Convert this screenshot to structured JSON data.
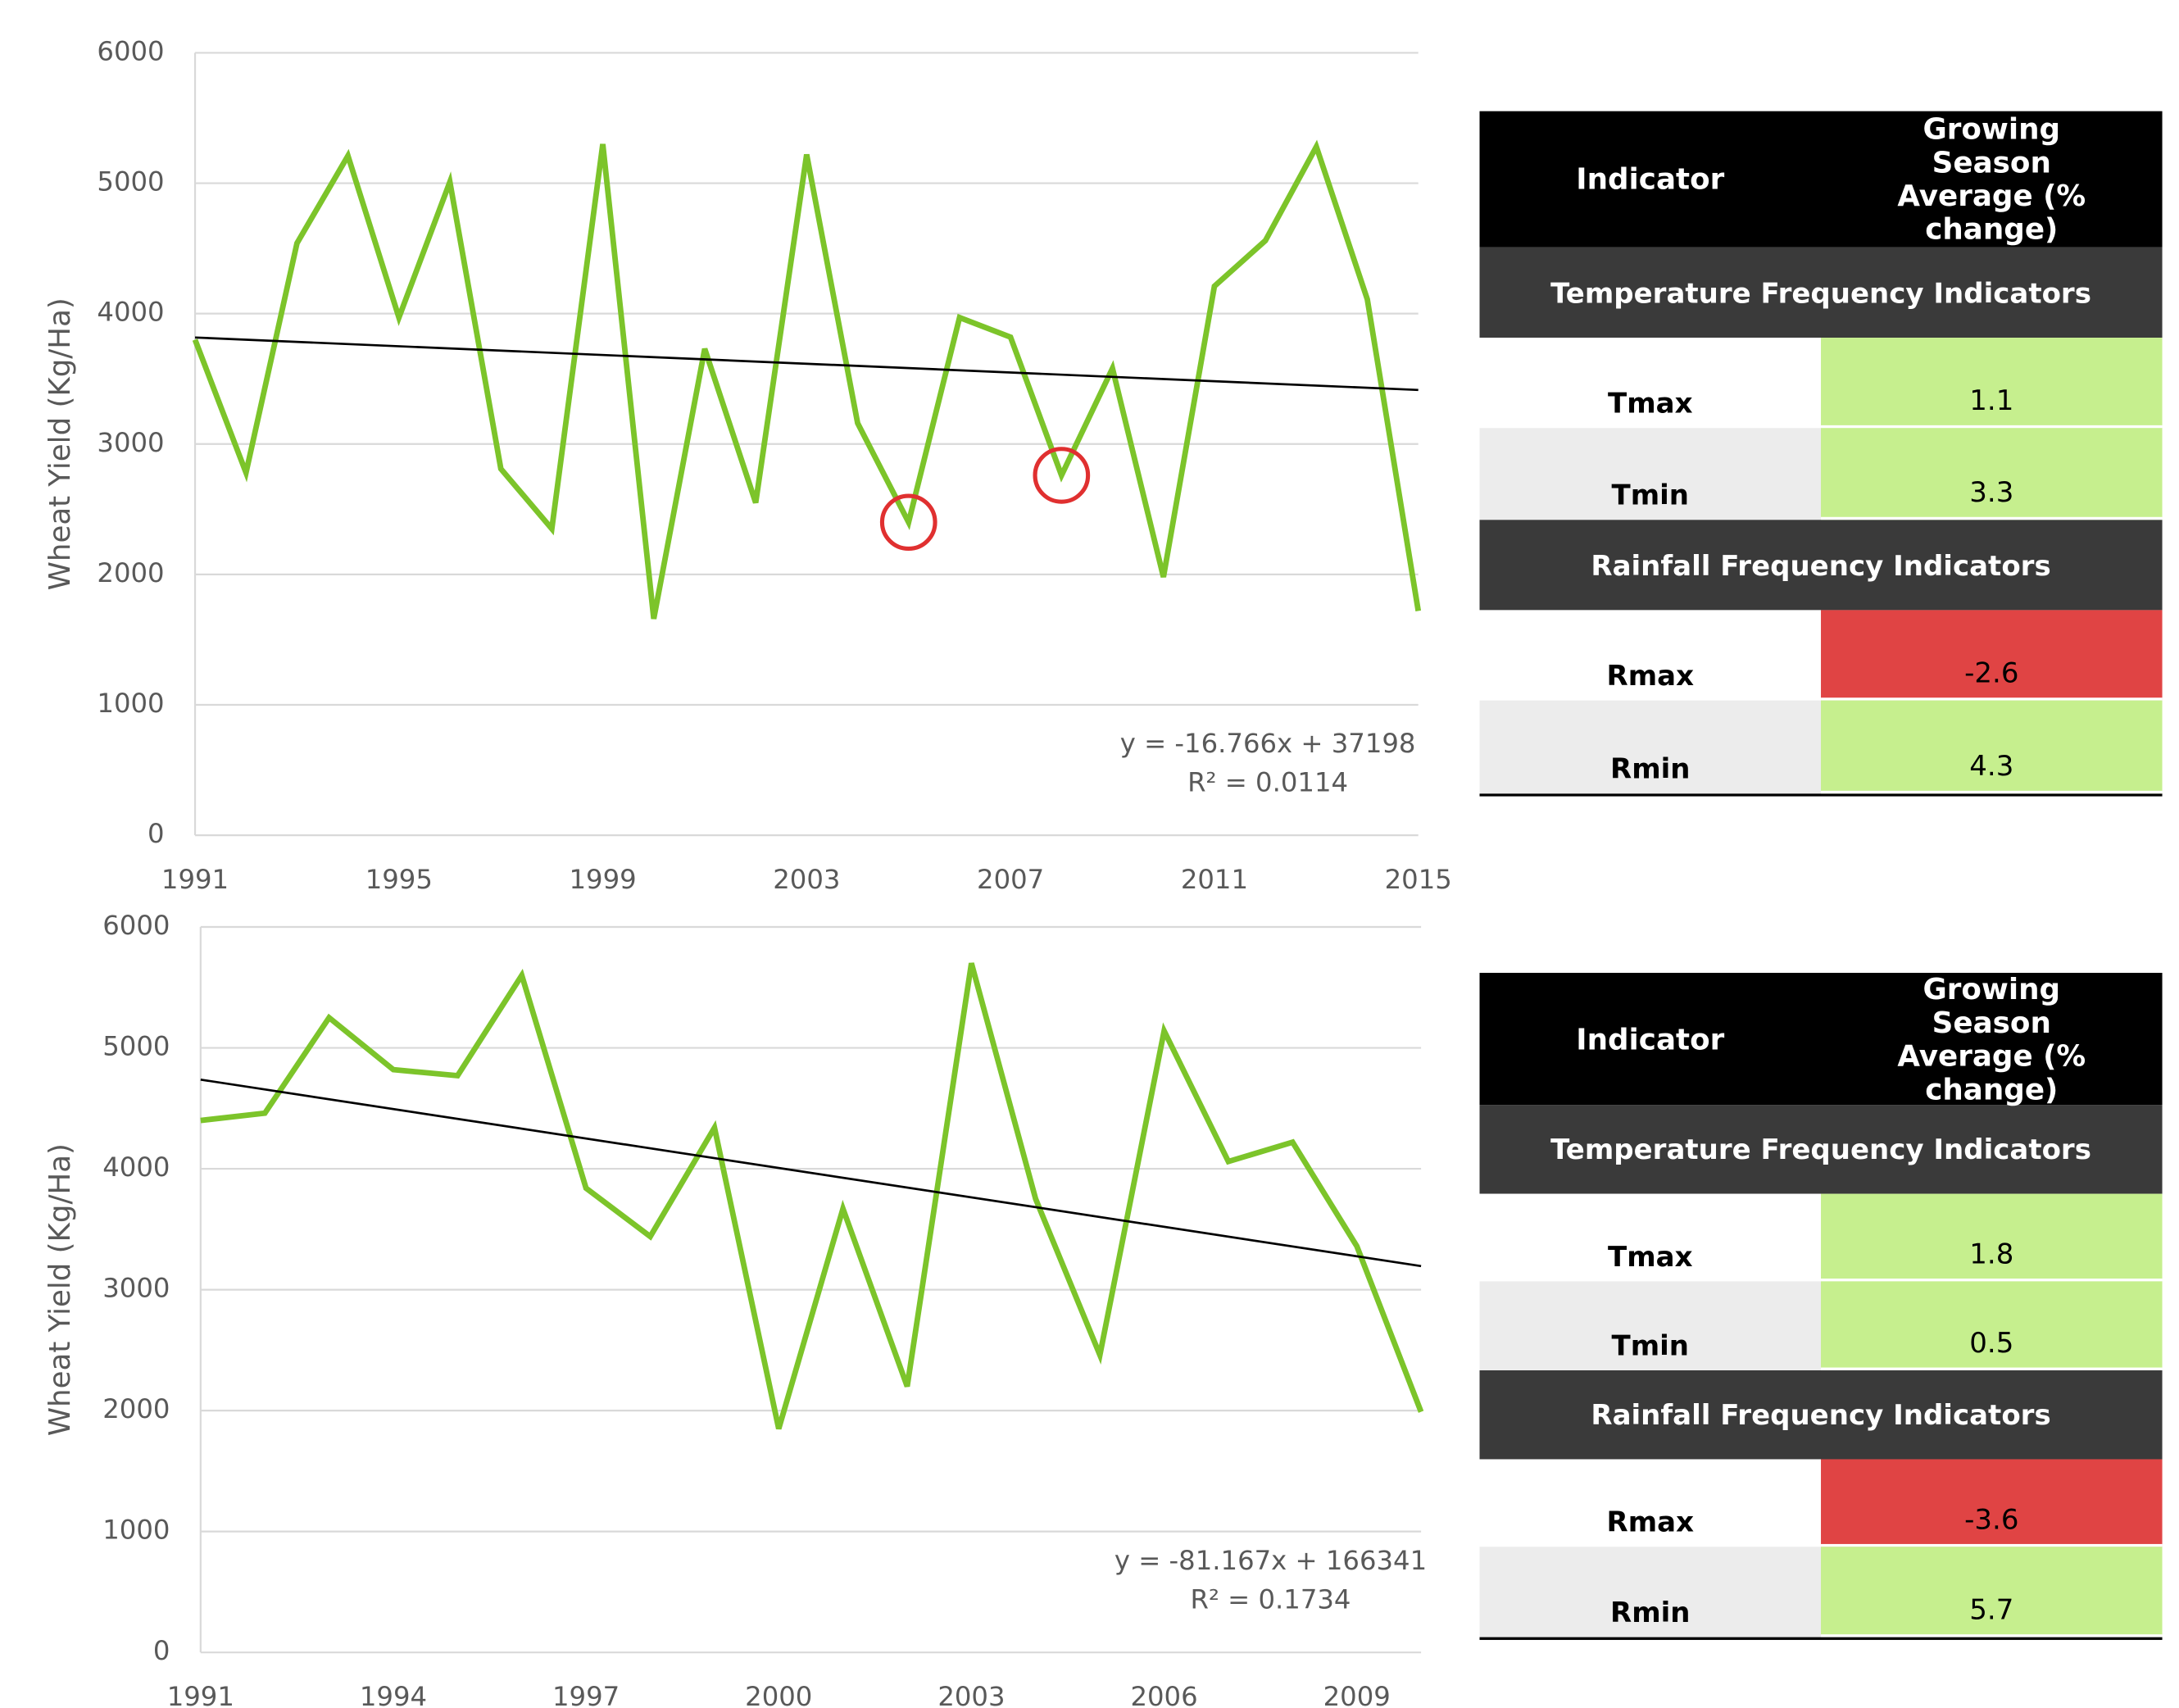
{
  "chart_data": [
    {
      "type": "line",
      "y_label": "Wheat Yield (Kg/Ha)",
      "x": [
        1991,
        1992,
        1993,
        1994,
        1995,
        1996,
        1997,
        1998,
        1999,
        2000,
        2001,
        2002,
        2003,
        2004,
        2005,
        2006,
        2007,
        2008,
        2009,
        2010,
        2011,
        2012,
        2013,
        2014,
        2015
      ],
      "series": [
        {
          "color": "#7cc42a",
          "values": [
            3800,
            2780,
            4540,
            5210,
            3970,
            5010,
            2810,
            2350,
            5300,
            1660,
            3730,
            2550,
            5220,
            3160,
            2400,
            3970,
            3820,
            2760,
            3580,
            1980,
            4210,
            4560,
            5280,
            4110,
            1720
          ]
        }
      ],
      "xlim": [
        1991,
        2015
      ],
      "xticks": [
        1991,
        1995,
        1999,
        2003,
        2007,
        2011,
        2015
      ],
      "ylim": [
        0,
        6000
      ],
      "yticks": [
        0,
        1000,
        2000,
        3000,
        4000,
        5000,
        6000
      ],
      "grid": true,
      "trendline": {
        "slope": -16.766,
        "intercept": 37198,
        "equation": "y = -16.766x + 37198",
        "r_squared": "R² = 0.0114"
      },
      "highlight_x": [
        2005,
        2008
      ],
      "highlight_color": "#e03030"
    },
    {
      "type": "line",
      "y_label": "Wheat Yield (Kg/Ha)",
      "x": [
        1991,
        1992,
        1993,
        1994,
        1995,
        1996,
        1997,
        1998,
        1999,
        2000,
        2001,
        2002,
        2003,
        2004,
        2005,
        2006,
        2007,
        2008,
        2009,
        2010
      ],
      "series": [
        {
          "color": "#7cc42a",
          "values": [
            4400,
            4460,
            5250,
            4820,
            4770,
            5600,
            3840,
            3440,
            4340,
            1850,
            3670,
            2200,
            5700,
            3750,
            2460,
            5140,
            4060,
            4220,
            3360,
            1990
          ]
        }
      ],
      "xlim": [
        1991,
        2010
      ],
      "xticks": [
        1991,
        1994,
        1997,
        2000,
        2003,
        2006,
        2009
      ],
      "ylim": [
        0,
        6000
      ],
      "yticks": [
        0,
        1000,
        2000,
        3000,
        4000,
        5000,
        6000
      ],
      "grid": true,
      "trendline": {
        "slope": -81.167,
        "intercept": 166341,
        "equation": "y = -81.167x + 166341",
        "r_squared": "R² = 0.1734"
      }
    }
  ],
  "tables": [
    {
      "header": [
        "Indicator",
        "Growing Season Average (% change)"
      ],
      "sections": [
        {
          "title": "Temperature Frequency Indicators",
          "rows": [
            {
              "indicator": "Tmax",
              "value": 1.1,
              "color": "#c6ef8e"
            },
            {
              "indicator": "Tmin",
              "value": 3.3,
              "color": "#c6ef8e"
            }
          ]
        },
        {
          "title": "Rainfall Frequency Indicators",
          "rows": [
            {
              "indicator": "Rmax",
              "value": -2.6,
              "color": "#e04444"
            },
            {
              "indicator": "Rmin",
              "value": 4.3,
              "color": "#c6ef8e"
            }
          ]
        }
      ]
    },
    {
      "header": [
        "Indicator",
        "Growing Season Average (% change)"
      ],
      "sections": [
        {
          "title": "Temperature Frequency Indicators",
          "rows": [
            {
              "indicator": "Tmax",
              "value": 1.8,
              "color": "#c6ef8e"
            },
            {
              "indicator": "Tmin",
              "value": 0.5,
              "color": "#c6ef8e"
            }
          ]
        },
        {
          "title": "Rainfall Frequency Indicators",
          "rows": [
            {
              "indicator": "Rmax",
              "value": -3.6,
              "color": "#e04444"
            },
            {
              "indicator": "Rmin",
              "value": 5.7,
              "color": "#c6ef8e"
            }
          ]
        }
      ]
    }
  ]
}
